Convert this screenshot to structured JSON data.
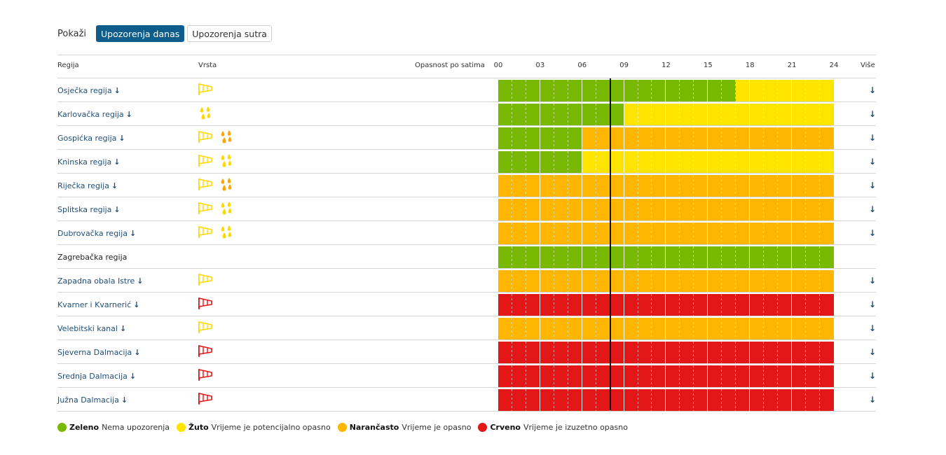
{
  "toolbar": {
    "label": "Pokaži",
    "buttons": [
      {
        "label": "Upozorenja danas",
        "active": true
      },
      {
        "label": "Upozorenja sutra",
        "active": false
      }
    ]
  },
  "table": {
    "col_region": "Regija",
    "col_type": "Vrsta",
    "col_danger": "Opasnost po satima",
    "col_more": "Više",
    "hours": [
      "00",
      "03",
      "06",
      "09",
      "12",
      "15",
      "18",
      "21",
      "24"
    ],
    "current_hour": 8
  },
  "colors": {
    "G": "#76b900",
    "Y": "#ffe400",
    "O": "#ffb600",
    "R": "#e31717",
    "link": "#1f4e79",
    "button_active": "#0d5c8a"
  },
  "icon_colors": {
    "yellow": "#ffd800",
    "orange": "#ffa500",
    "red": "#e31717"
  },
  "regions": [
    {
      "name": "Osječka regija",
      "link": true,
      "icons": [
        {
          "type": "wind-icon",
          "color": "yellow"
        }
      ],
      "hourly": "GGGGGGGGGGGGGGGGGYYYYYYY"
    },
    {
      "name": "Karlovačka regija",
      "link": true,
      "icons": [
        {
          "type": "rain-icon",
          "color": "yellow"
        }
      ],
      "hourly": "GGGGGGGGGYYYYYYYYYYYYYYY"
    },
    {
      "name": "Gospićka regija",
      "link": true,
      "icons": [
        {
          "type": "wind-icon",
          "color": "yellow"
        },
        {
          "type": "rain-icon",
          "color": "orange"
        }
      ],
      "hourly": "GGGGGGOOOOOOOOOOOOOOOOOO"
    },
    {
      "name": "Kninska regija",
      "link": true,
      "icons": [
        {
          "type": "wind-icon",
          "color": "yellow"
        },
        {
          "type": "rain-icon",
          "color": "yellow"
        }
      ],
      "hourly": "GGGGGGYYYYYYYYYYYYYYYYYY"
    },
    {
      "name": "Riječka regija",
      "link": true,
      "icons": [
        {
          "type": "wind-icon",
          "color": "yellow"
        },
        {
          "type": "rain-icon",
          "color": "orange"
        }
      ],
      "hourly": "OOOOOOOOOOOOOOOOOOOOOOOO"
    },
    {
      "name": "Splitska regija",
      "link": true,
      "icons": [
        {
          "type": "wind-icon",
          "color": "yellow"
        },
        {
          "type": "rain-icon",
          "color": "yellow"
        }
      ],
      "hourly": "OOOOOOOOOOOOOOOOOOOOOOOO"
    },
    {
      "name": "Dubrovačka regija",
      "link": true,
      "icons": [
        {
          "type": "wind-icon",
          "color": "yellow"
        },
        {
          "type": "rain-icon",
          "color": "yellow"
        }
      ],
      "hourly": "OOOOOOOOOOOOOOOOOOOOOOOO"
    },
    {
      "name": "Zagrebačka regija",
      "link": false,
      "icons": [],
      "hourly": "GGGGGGGGGGGGGGGGGGGGGGGG"
    },
    {
      "name": "Zapadna obala Istre",
      "link": true,
      "icons": [
        {
          "type": "wind-icon",
          "color": "yellow"
        }
      ],
      "hourly": "OOOOOOOOOOOOOOOOOOOOOOOO"
    },
    {
      "name": "Kvarner i Kvarnerić",
      "link": true,
      "icons": [
        {
          "type": "wind-icon",
          "color": "red"
        }
      ],
      "hourly": "RRRRRRRRRRRRRRRRRRRRRRRR"
    },
    {
      "name": "Velebitski kanal",
      "link": true,
      "icons": [
        {
          "type": "wind-icon",
          "color": "yellow"
        }
      ],
      "hourly": "OOOOOOOOOOOOOOOOOOOOOOOO"
    },
    {
      "name": "Sjeverna Dalmacija",
      "link": true,
      "icons": [
        {
          "type": "wind-icon",
          "color": "red"
        }
      ],
      "hourly": "RRRRRRRRRRRRRRRRRRRRRRRR"
    },
    {
      "name": "Srednja Dalmacija",
      "link": true,
      "icons": [
        {
          "type": "wind-icon",
          "color": "red"
        }
      ],
      "hourly": "RRRRRRRRRRRRRRRRRRRRRRRR"
    },
    {
      "name": "Južna Dalmacija",
      "link": true,
      "icons": [
        {
          "type": "wind-icon",
          "color": "red"
        }
      ],
      "hourly": "RRRRRRRRRRRRRRRRRRRRRRRR"
    }
  ],
  "legend": [
    {
      "color": "#76b900",
      "name": "Zeleno",
      "desc": "Nema upozorenja"
    },
    {
      "color": "#ffe400",
      "name": "Žuto",
      "desc": "Vrijeme je potencijalno opasno"
    },
    {
      "color": "#ffb600",
      "name": "Narančasto",
      "desc": "Vrijeme je opasno"
    },
    {
      "color": "#e31717",
      "name": "Crveno",
      "desc": "Vrijeme je izuzetno opasno"
    }
  ]
}
